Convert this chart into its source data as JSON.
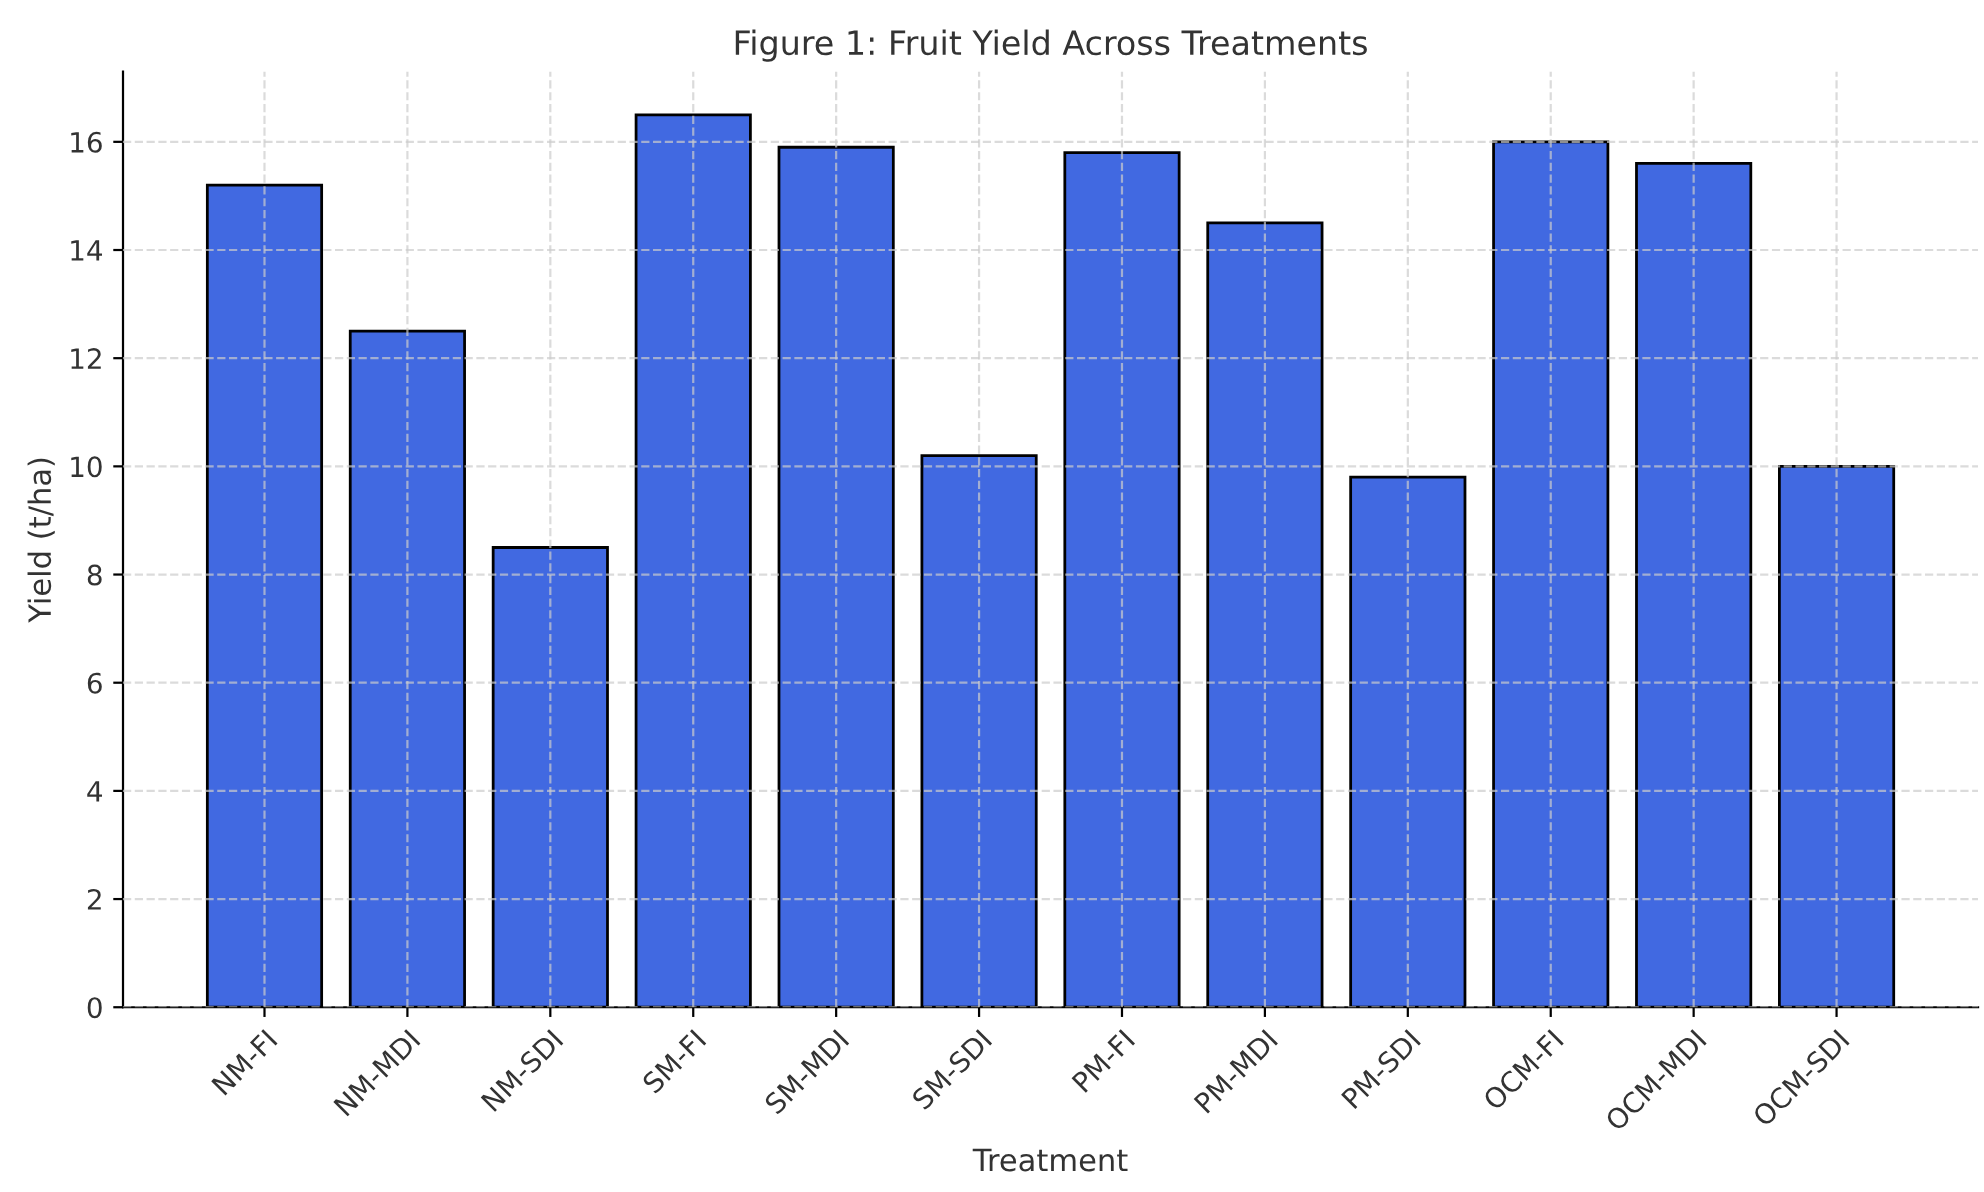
{
  "chart_data": {
    "type": "bar",
    "title": "Figure 1: Fruit Yield Across Treatments",
    "xlabel": "Treatment",
    "ylabel": "Yield (t/ha)",
    "categories": [
      "NM-FI",
      "NM-MDI",
      "NM-SDI",
      "SM-FI",
      "SM-MDI",
      "SM-SDI",
      "PM-FI",
      "PM-MDI",
      "PM-SDI",
      "OCM-FI",
      "OCM-MDI",
      "OCM-SDI"
    ],
    "values": [
      15.2,
      12.5,
      8.5,
      16.5,
      15.9,
      10.2,
      15.8,
      14.5,
      9.8,
      16.0,
      15.6,
      10.0
    ],
    "color": "#4169e1",
    "ylim": [
      0,
      17.3
    ],
    "yticks": [
      0,
      2,
      4,
      6,
      8,
      10,
      12,
      14,
      16
    ],
    "grid": true,
    "line_style": "dashed"
  }
}
